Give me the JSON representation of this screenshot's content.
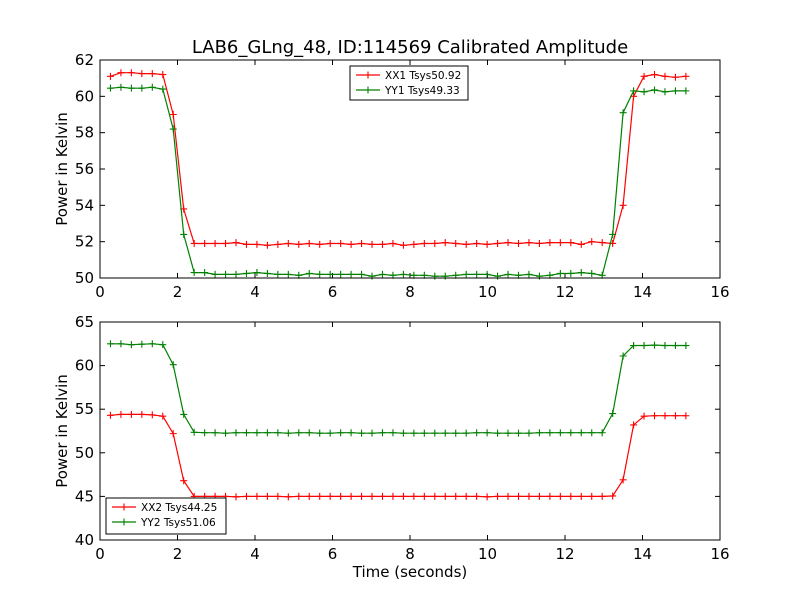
{
  "chart_data": [
    {
      "type": "line",
      "title": "LAB6_GLng_48, ID:114569 Calibrated Amplitude",
      "xlabel": "",
      "ylabel": "Power in Kelvin",
      "xlim": [
        0,
        16
      ],
      "ylim": [
        50,
        62
      ],
      "xticks": [
        "0",
        "2",
        "4",
        "6",
        "8",
        "10",
        "12",
        "14",
        "16"
      ],
      "yticks": [
        "50",
        "52",
        "54",
        "56",
        "58",
        "60",
        "62"
      ],
      "legend_position": "top-center",
      "x": [
        0.27,
        0.54,
        0.81,
        1.08,
        1.35,
        1.62,
        1.89,
        2.16,
        2.43,
        2.7,
        2.97,
        3.24,
        3.51,
        3.78,
        4.05,
        4.32,
        4.59,
        4.86,
        5.13,
        5.4,
        5.67,
        5.94,
        6.21,
        6.48,
        6.75,
        7.02,
        7.29,
        7.56,
        7.83,
        8.1,
        8.37,
        8.64,
        8.91,
        9.18,
        9.45,
        9.72,
        9.99,
        10.26,
        10.53,
        10.8,
        11.07,
        11.34,
        11.61,
        11.88,
        12.15,
        12.42,
        12.69,
        12.96,
        13.23,
        13.5,
        13.77,
        14.04,
        14.31,
        14.58,
        14.85,
        15.12
      ],
      "series": [
        {
          "name": "XX1 Tsys50.92",
          "color": "#ff0000",
          "values": [
            61.1,
            61.3,
            61.3,
            61.25,
            61.25,
            61.2,
            59.0,
            53.8,
            51.9,
            51.9,
            51.9,
            51.9,
            51.95,
            51.85,
            51.85,
            51.8,
            51.85,
            51.9,
            51.85,
            51.9,
            51.85,
            51.9,
            51.9,
            51.85,
            51.9,
            51.85,
            51.85,
            51.9,
            51.8,
            51.85,
            51.9,
            51.9,
            51.95,
            51.9,
            51.85,
            51.9,
            51.85,
            51.9,
            51.95,
            51.9,
            51.95,
            51.9,
            51.95,
            51.95,
            51.95,
            51.85,
            52.0,
            51.95,
            51.9,
            54.0,
            60.0,
            61.1,
            61.2,
            61.1,
            61.05,
            61.1
          ]
        },
        {
          "name": "YY1 Tsys49.33",
          "color": "#008000",
          "values": [
            60.45,
            60.5,
            60.45,
            60.45,
            60.5,
            60.4,
            58.2,
            52.4,
            50.3,
            50.3,
            50.2,
            50.2,
            50.2,
            50.25,
            50.3,
            50.25,
            50.2,
            50.2,
            50.15,
            50.25,
            50.2,
            50.2,
            50.2,
            50.2,
            50.2,
            50.1,
            50.2,
            50.15,
            50.2,
            50.15,
            50.15,
            50.1,
            50.1,
            50.15,
            50.2,
            50.2,
            50.2,
            50.1,
            50.2,
            50.15,
            50.2,
            50.1,
            50.15,
            50.25,
            50.25,
            50.3,
            50.25,
            50.15,
            52.4,
            59.1,
            60.3,
            60.25,
            60.35,
            60.25,
            60.3,
            60.3
          ]
        }
      ]
    },
    {
      "type": "line",
      "title": "",
      "xlabel": "Time (seconds)",
      "ylabel": "Power in Kelvin",
      "xlim": [
        0,
        16
      ],
      "ylim": [
        40,
        65
      ],
      "xticks": [
        "0",
        "2",
        "4",
        "6",
        "8",
        "10",
        "12",
        "14",
        "16"
      ],
      "yticks": [
        "40",
        "45",
        "50",
        "55",
        "60",
        "65"
      ],
      "legend_position": "bottom-left",
      "x": [
        0.27,
        0.54,
        0.81,
        1.08,
        1.35,
        1.62,
        1.89,
        2.16,
        2.43,
        2.7,
        2.97,
        3.24,
        3.51,
        3.78,
        4.05,
        4.32,
        4.59,
        4.86,
        5.13,
        5.4,
        5.67,
        5.94,
        6.21,
        6.48,
        6.75,
        7.02,
        7.29,
        7.56,
        7.83,
        8.1,
        8.37,
        8.64,
        8.91,
        9.18,
        9.45,
        9.72,
        9.99,
        10.26,
        10.53,
        10.8,
        11.07,
        11.34,
        11.61,
        11.88,
        12.15,
        12.42,
        12.69,
        12.96,
        13.23,
        13.5,
        13.77,
        14.04,
        14.31,
        14.58,
        14.85,
        15.12
      ],
      "series": [
        {
          "name": "XX2 Tsys44.25",
          "color": "#ff0000",
          "values": [
            54.3,
            54.4,
            54.4,
            54.4,
            54.35,
            54.2,
            52.2,
            46.8,
            45.0,
            45.0,
            45.0,
            45.0,
            44.95,
            45.0,
            45.0,
            45.0,
            45.0,
            44.95,
            45.0,
            45.0,
            45.0,
            45.0,
            45.0,
            45.0,
            45.0,
            45.0,
            45.0,
            45.0,
            45.0,
            45.0,
            45.0,
            45.0,
            45.0,
            45.0,
            45.0,
            45.0,
            44.95,
            45.0,
            45.0,
            45.0,
            45.0,
            45.0,
            45.0,
            45.0,
            45.0,
            45.0,
            45.0,
            45.0,
            45.05,
            46.9,
            53.2,
            54.2,
            54.25,
            54.25,
            54.25,
            54.25
          ]
        },
        {
          "name": "YY2 Tsys51.06",
          "color": "#008000",
          "values": [
            62.5,
            62.5,
            62.4,
            62.45,
            62.5,
            62.4,
            60.1,
            54.4,
            52.35,
            52.3,
            52.3,
            52.25,
            52.3,
            52.3,
            52.3,
            52.3,
            52.3,
            52.25,
            52.3,
            52.3,
            52.25,
            52.25,
            52.3,
            52.3,
            52.25,
            52.25,
            52.3,
            52.3,
            52.25,
            52.25,
            52.25,
            52.25,
            52.25,
            52.25,
            52.25,
            52.3,
            52.3,
            52.25,
            52.25,
            52.25,
            52.25,
            52.3,
            52.3,
            52.3,
            52.3,
            52.3,
            52.3,
            52.3,
            54.5,
            61.1,
            62.3,
            62.3,
            62.35,
            62.3,
            62.3,
            62.3
          ]
        }
      ]
    }
  ]
}
